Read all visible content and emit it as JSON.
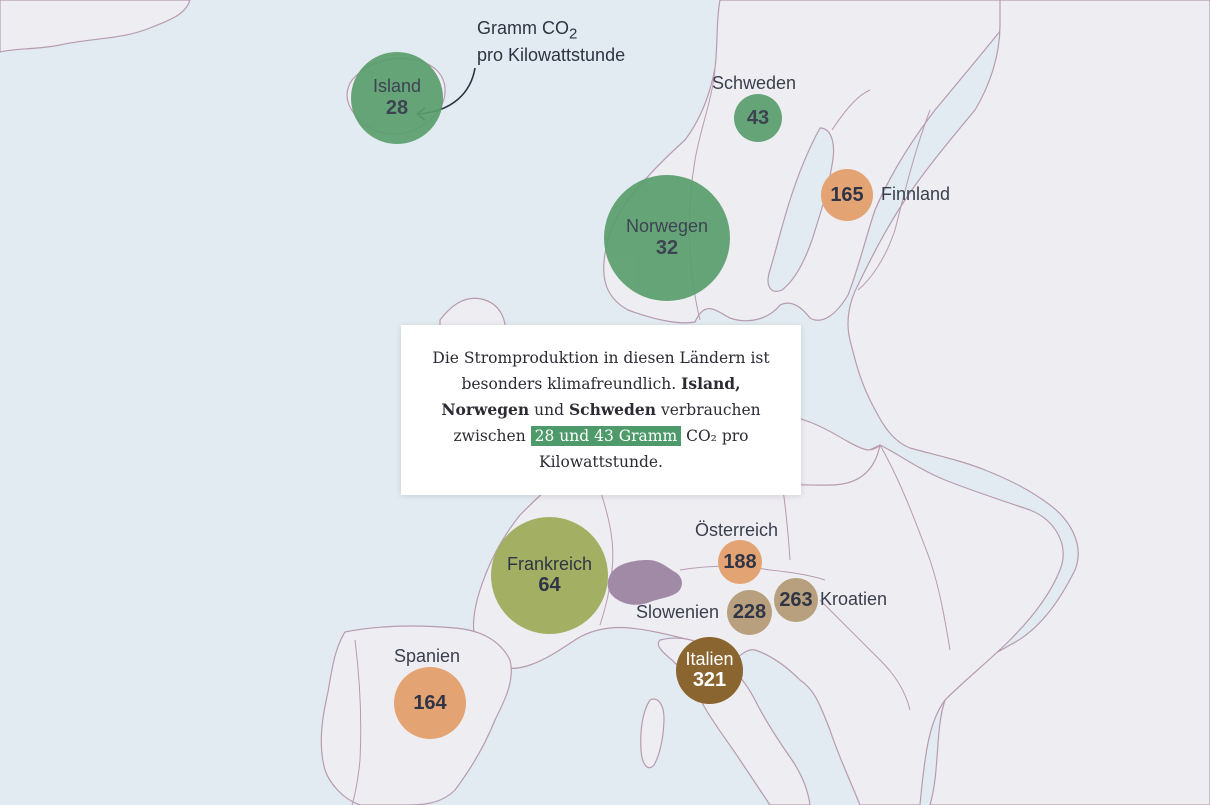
{
  "annotation": {
    "line1": "Gramm CO",
    "sub": "2",
    "line2": "pro Kilowattstunde"
  },
  "info": {
    "t1": "Die Stromproduktion in diesen Ländern ist besonders klimafreundlich.",
    "b1": "Island,",
    "b2": "Norwegen",
    "t2": "und",
    "b3": "Schweden",
    "t3": "verbrauchen zwischen",
    "highlight": "28 und 43 Gramm",
    "t4": "CO₂ pro Kilowattstunde.",
    "highlight_color": "#4e9a6a"
  },
  "countries": [
    {
      "name": "Island",
      "value": "28",
      "color": "#5a9e6c"
    },
    {
      "name": "Norwegen",
      "value": "32",
      "color": "#5a9e6c"
    },
    {
      "name": "Schweden",
      "value": "43",
      "color": "#5a9e6c"
    },
    {
      "name": "Finnland",
      "value": "165",
      "color": "#e4a373"
    },
    {
      "name": "Frankreich",
      "value": "64",
      "color": "#a3b063"
    },
    {
      "name": "Österreich",
      "value": "188",
      "color": "#e4a373"
    },
    {
      "name": "Slowenien",
      "value": "228",
      "color": "#b8a07e"
    },
    {
      "name": "Kroatien",
      "value": "263",
      "color": "#b8a07e"
    },
    {
      "name": "Italien",
      "value": "321",
      "color": "#8b6530"
    },
    {
      "name": "Spanien",
      "value": "164",
      "color": "#e4a373"
    }
  ],
  "switzerland_color": "#a08aa6",
  "colors": {
    "sea": "#e2ebf2",
    "land": "#eeedf2",
    "border": "#b79bb0"
  }
}
